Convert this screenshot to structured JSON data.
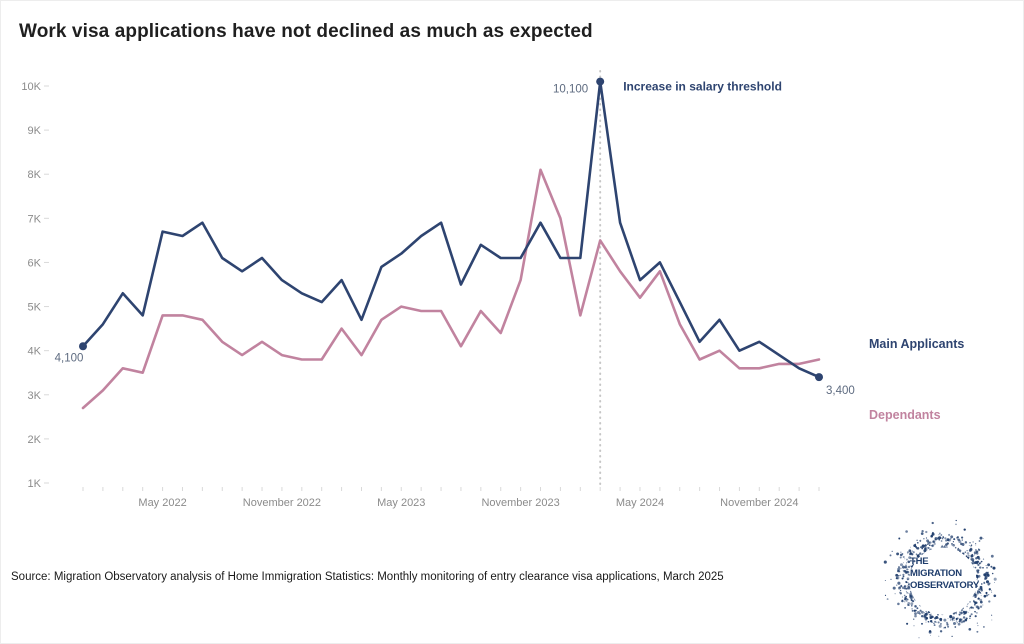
{
  "title": "Work visa applications have not declined as much as expected",
  "source": "Source: Migration Observatory analysis of Home Immigration Statistics: Monthly monitoring of entry clearance visa applications, March 2025",
  "legend": {
    "main": "Main Applicants",
    "dependants": "Dependants"
  },
  "annotations": {
    "start_value": "4,100",
    "peak_value": "10,100",
    "end_value": "3,400",
    "event_label": "Increase in salary threshold"
  },
  "logo": {
    "lines": [
      "THE",
      "MIGRATION",
      "OBSERVATORY"
    ]
  },
  "colors": {
    "main": "#2e4470",
    "dependants": "#c1839f",
    "annotation_number": "#5e6b80",
    "event_label": "#2e4470",
    "axis_text": "#8b8b8b",
    "tick_mark": "#d9d9d9",
    "event_line": "#c6c6c6",
    "logo_navy": "#1e3c6b"
  },
  "chart_data": {
    "type": "line",
    "x": [
      "January 2022",
      "February 2022",
      "March 2022",
      "April 2022",
      "May 2022",
      "June 2022",
      "July 2022",
      "August 2022",
      "September 2022",
      "October 2022",
      "November 2022",
      "December 2022",
      "January 2023",
      "February 2023",
      "March 2023",
      "April 2023",
      "May 2023",
      "June 2023",
      "July 2023",
      "August 2023",
      "September 2023",
      "October 2023",
      "November 2023",
      "December 2023",
      "January 2024",
      "February 2024",
      "March 2024",
      "April 2024",
      "May 2024",
      "June 2024",
      "July 2024",
      "August 2024",
      "September 2024",
      "October 2024",
      "November 2024",
      "December 2024",
      "January 2025",
      "February 2025"
    ],
    "series": [
      {
        "name": "Main Applicants",
        "color": "#2e4470",
        "values": [
          4100,
          4600,
          5300,
          4800,
          6700,
          6600,
          6900,
          6100,
          5800,
          6100,
          5600,
          5300,
          5100,
          5600,
          4700,
          5900,
          6200,
          6600,
          6900,
          5500,
          6400,
          6100,
          6100,
          6900,
          6100,
          6100,
          10100,
          6900,
          5600,
          6000,
          5100,
          4200,
          4700,
          4000,
          4200,
          3900,
          3600,
          3400
        ]
      },
      {
        "name": "Dependants",
        "color": "#c1839f",
        "values": [
          2700,
          3100,
          3600,
          3500,
          4800,
          4800,
          4700,
          4200,
          3900,
          4200,
          3900,
          3800,
          3800,
          4500,
          3900,
          4700,
          5000,
          4900,
          4900,
          4100,
          4900,
          4400,
          5600,
          8100,
          7000,
          4800,
          6500,
          5800,
          5200,
          5800,
          4600,
          3800,
          4000,
          3600,
          3600,
          3700,
          3700,
          3800
        ]
      }
    ],
    "ylim": [
      1000,
      10000
    ],
    "y_tick_labels": [
      "1K",
      "2K",
      "3K",
      "4K",
      "5K",
      "6K",
      "7K",
      "8K",
      "9K",
      "10K"
    ],
    "x_tick_indices": [
      4,
      10,
      16,
      22,
      28,
      34
    ],
    "grid": "off",
    "legend_position": "right-outside",
    "event_line_index": 26,
    "markers": [
      {
        "series": 0,
        "index": 0
      },
      {
        "series": 0,
        "index": 26
      },
      {
        "series": 0,
        "index": 37
      }
    ]
  }
}
